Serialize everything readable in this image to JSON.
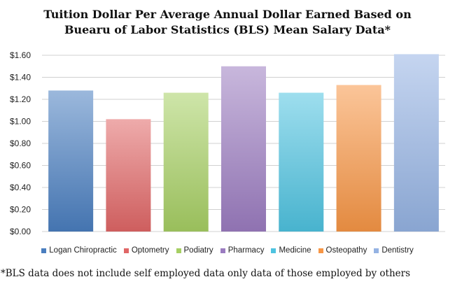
{
  "chart_data": {
    "type": "bar",
    "title_line1": "Tuition Dollar Per Average Annual Dollar Earned Based on",
    "title_line2": "Buearu of Labor Statistics (BLS) Mean Salary Data*",
    "xlabel": "",
    "ylabel": "",
    "ylim": [
      0,
      1.6
    ],
    "ytick_labels": [
      "$0.00",
      "$0.20",
      "$0.40",
      "$0.60",
      "$0.80",
      "$1.00",
      "$1.20",
      "$1.40",
      "$1.60"
    ],
    "ytick_values": [
      0,
      0.2,
      0.4,
      0.6,
      0.8,
      1.0,
      1.2,
      1.4,
      1.6
    ],
    "grid": true,
    "legend_position": "bottom",
    "series": [
      {
        "name": "Logan Chiropractic",
        "value": 1.28,
        "color": "#4a7ebf"
      },
      {
        "name": "Optometry",
        "value": 1.02,
        "color": "#e06666"
      },
      {
        "name": "Podiatry",
        "value": 1.26,
        "color": "#a6cf63"
      },
      {
        "name": "Pharmacy",
        "value": 1.5,
        "color": "#9b7cc0"
      },
      {
        "name": "Medicine",
        "value": 1.26,
        "color": "#4ec3e0"
      },
      {
        "name": "Osteopathy",
        "value": 1.33,
        "color": "#f79646"
      },
      {
        "name": "Dentistry",
        "value": 1.61,
        "color": "#95b3e3"
      }
    ],
    "footnote": "*BLS data does not include self employed data only data of those employed by others"
  }
}
